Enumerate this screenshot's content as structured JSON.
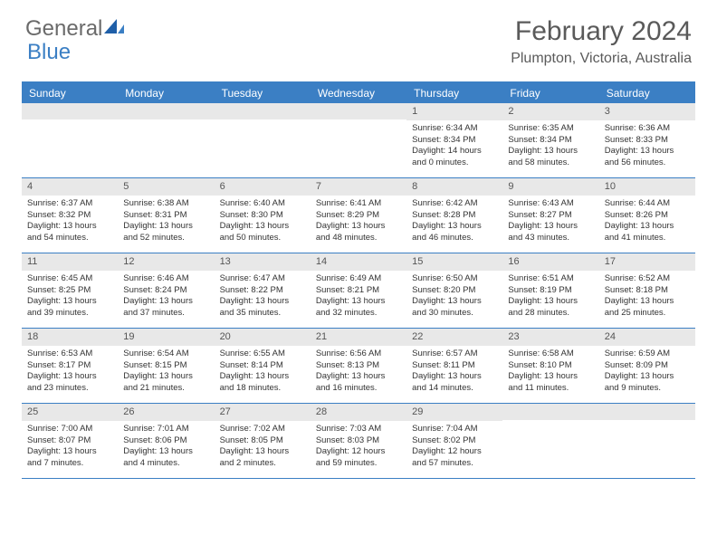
{
  "logo": {
    "part1": "General",
    "part2": "Blue"
  },
  "title": "February 2024",
  "location": "Plumpton, Victoria, Australia",
  "colors": {
    "accent": "#3b7fc4",
    "header_bg": "#3b7fc4",
    "daynum_bg": "#e8e8e8"
  },
  "day_names": [
    "Sunday",
    "Monday",
    "Tuesday",
    "Wednesday",
    "Thursday",
    "Friday",
    "Saturday"
  ],
  "weeks": [
    [
      {
        "empty": true
      },
      {
        "empty": true
      },
      {
        "empty": true
      },
      {
        "empty": true
      },
      {
        "day": "1",
        "sunrise": "Sunrise: 6:34 AM",
        "sunset": "Sunset: 8:34 PM",
        "daylight1": "Daylight: 14 hours",
        "daylight2": "and 0 minutes."
      },
      {
        "day": "2",
        "sunrise": "Sunrise: 6:35 AM",
        "sunset": "Sunset: 8:34 PM",
        "daylight1": "Daylight: 13 hours",
        "daylight2": "and 58 minutes."
      },
      {
        "day": "3",
        "sunrise": "Sunrise: 6:36 AM",
        "sunset": "Sunset: 8:33 PM",
        "daylight1": "Daylight: 13 hours",
        "daylight2": "and 56 minutes."
      }
    ],
    [
      {
        "day": "4",
        "sunrise": "Sunrise: 6:37 AM",
        "sunset": "Sunset: 8:32 PM",
        "daylight1": "Daylight: 13 hours",
        "daylight2": "and 54 minutes."
      },
      {
        "day": "5",
        "sunrise": "Sunrise: 6:38 AM",
        "sunset": "Sunset: 8:31 PM",
        "daylight1": "Daylight: 13 hours",
        "daylight2": "and 52 minutes."
      },
      {
        "day": "6",
        "sunrise": "Sunrise: 6:40 AM",
        "sunset": "Sunset: 8:30 PM",
        "daylight1": "Daylight: 13 hours",
        "daylight2": "and 50 minutes."
      },
      {
        "day": "7",
        "sunrise": "Sunrise: 6:41 AM",
        "sunset": "Sunset: 8:29 PM",
        "daylight1": "Daylight: 13 hours",
        "daylight2": "and 48 minutes."
      },
      {
        "day": "8",
        "sunrise": "Sunrise: 6:42 AM",
        "sunset": "Sunset: 8:28 PM",
        "daylight1": "Daylight: 13 hours",
        "daylight2": "and 46 minutes."
      },
      {
        "day": "9",
        "sunrise": "Sunrise: 6:43 AM",
        "sunset": "Sunset: 8:27 PM",
        "daylight1": "Daylight: 13 hours",
        "daylight2": "and 43 minutes."
      },
      {
        "day": "10",
        "sunrise": "Sunrise: 6:44 AM",
        "sunset": "Sunset: 8:26 PM",
        "daylight1": "Daylight: 13 hours",
        "daylight2": "and 41 minutes."
      }
    ],
    [
      {
        "day": "11",
        "sunrise": "Sunrise: 6:45 AM",
        "sunset": "Sunset: 8:25 PM",
        "daylight1": "Daylight: 13 hours",
        "daylight2": "and 39 minutes."
      },
      {
        "day": "12",
        "sunrise": "Sunrise: 6:46 AM",
        "sunset": "Sunset: 8:24 PM",
        "daylight1": "Daylight: 13 hours",
        "daylight2": "and 37 minutes."
      },
      {
        "day": "13",
        "sunrise": "Sunrise: 6:47 AM",
        "sunset": "Sunset: 8:22 PM",
        "daylight1": "Daylight: 13 hours",
        "daylight2": "and 35 minutes."
      },
      {
        "day": "14",
        "sunrise": "Sunrise: 6:49 AM",
        "sunset": "Sunset: 8:21 PM",
        "daylight1": "Daylight: 13 hours",
        "daylight2": "and 32 minutes."
      },
      {
        "day": "15",
        "sunrise": "Sunrise: 6:50 AM",
        "sunset": "Sunset: 8:20 PM",
        "daylight1": "Daylight: 13 hours",
        "daylight2": "and 30 minutes."
      },
      {
        "day": "16",
        "sunrise": "Sunrise: 6:51 AM",
        "sunset": "Sunset: 8:19 PM",
        "daylight1": "Daylight: 13 hours",
        "daylight2": "and 28 minutes."
      },
      {
        "day": "17",
        "sunrise": "Sunrise: 6:52 AM",
        "sunset": "Sunset: 8:18 PM",
        "daylight1": "Daylight: 13 hours",
        "daylight2": "and 25 minutes."
      }
    ],
    [
      {
        "day": "18",
        "sunrise": "Sunrise: 6:53 AM",
        "sunset": "Sunset: 8:17 PM",
        "daylight1": "Daylight: 13 hours",
        "daylight2": "and 23 minutes."
      },
      {
        "day": "19",
        "sunrise": "Sunrise: 6:54 AM",
        "sunset": "Sunset: 8:15 PM",
        "daylight1": "Daylight: 13 hours",
        "daylight2": "and 21 minutes."
      },
      {
        "day": "20",
        "sunrise": "Sunrise: 6:55 AM",
        "sunset": "Sunset: 8:14 PM",
        "daylight1": "Daylight: 13 hours",
        "daylight2": "and 18 minutes."
      },
      {
        "day": "21",
        "sunrise": "Sunrise: 6:56 AM",
        "sunset": "Sunset: 8:13 PM",
        "daylight1": "Daylight: 13 hours",
        "daylight2": "and 16 minutes."
      },
      {
        "day": "22",
        "sunrise": "Sunrise: 6:57 AM",
        "sunset": "Sunset: 8:11 PM",
        "daylight1": "Daylight: 13 hours",
        "daylight2": "and 14 minutes."
      },
      {
        "day": "23",
        "sunrise": "Sunrise: 6:58 AM",
        "sunset": "Sunset: 8:10 PM",
        "daylight1": "Daylight: 13 hours",
        "daylight2": "and 11 minutes."
      },
      {
        "day": "24",
        "sunrise": "Sunrise: 6:59 AM",
        "sunset": "Sunset: 8:09 PM",
        "daylight1": "Daylight: 13 hours",
        "daylight2": "and 9 minutes."
      }
    ],
    [
      {
        "day": "25",
        "sunrise": "Sunrise: 7:00 AM",
        "sunset": "Sunset: 8:07 PM",
        "daylight1": "Daylight: 13 hours",
        "daylight2": "and 7 minutes."
      },
      {
        "day": "26",
        "sunrise": "Sunrise: 7:01 AM",
        "sunset": "Sunset: 8:06 PM",
        "daylight1": "Daylight: 13 hours",
        "daylight2": "and 4 minutes."
      },
      {
        "day": "27",
        "sunrise": "Sunrise: 7:02 AM",
        "sunset": "Sunset: 8:05 PM",
        "daylight1": "Daylight: 13 hours",
        "daylight2": "and 2 minutes."
      },
      {
        "day": "28",
        "sunrise": "Sunrise: 7:03 AM",
        "sunset": "Sunset: 8:03 PM",
        "daylight1": "Daylight: 12 hours",
        "daylight2": "and 59 minutes."
      },
      {
        "day": "29",
        "sunrise": "Sunrise: 7:04 AM",
        "sunset": "Sunset: 8:02 PM",
        "daylight1": "Daylight: 12 hours",
        "daylight2": "and 57 minutes."
      },
      {
        "empty": true
      },
      {
        "empty": true
      }
    ]
  ]
}
